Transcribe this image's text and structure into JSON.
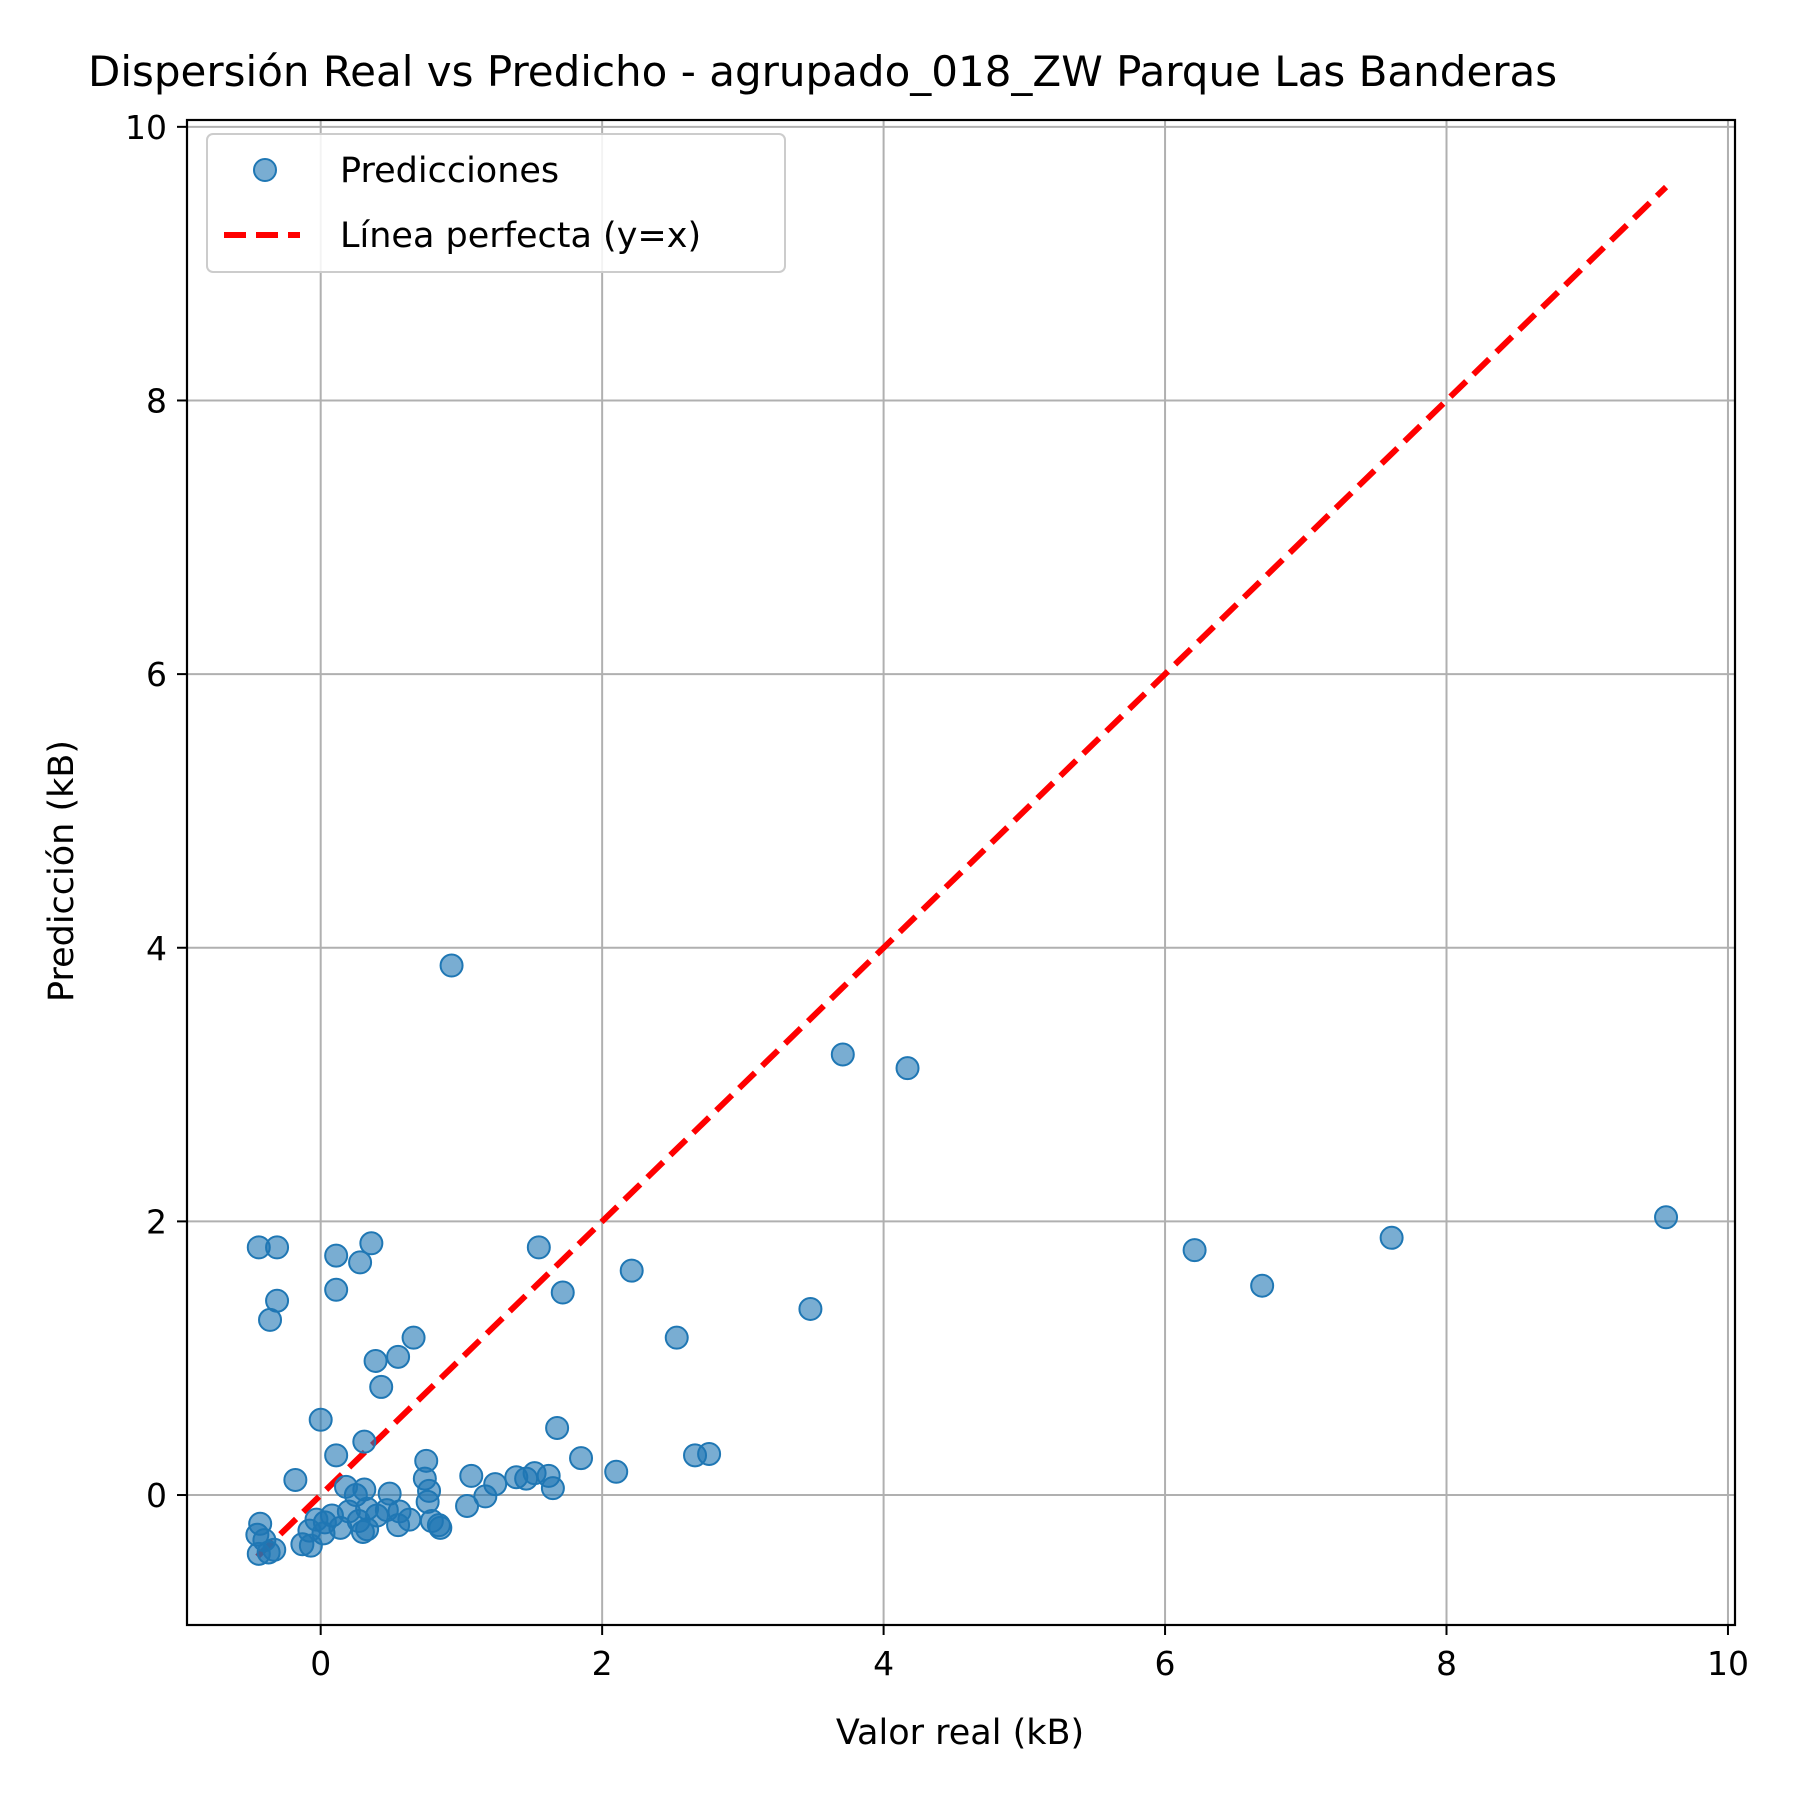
{
  "chart_data": {
    "type": "scatter",
    "title": "Dispersión Real vs Predicho - agrupado_018_ZW Parque Las Banderas",
    "xlabel": "Valor real (kB)",
    "ylabel": "Predicción (kB)",
    "xlim": [
      -0.95,
      10.05
    ],
    "ylim": [
      -0.95,
      10.05
    ],
    "x_ticks": [
      0,
      2,
      4,
      6,
      8,
      10
    ],
    "y_ticks": [
      0,
      2,
      4,
      6,
      8,
      10
    ],
    "x_tick_labels": [
      "0",
      "2",
      "4",
      "6",
      "8",
      "10"
    ],
    "y_tick_labels": [
      "0",
      "2",
      "4",
      "6",
      "8",
      "10"
    ],
    "grid": true,
    "legend_position": "top-left",
    "series": [
      {
        "name": "Predicciones",
        "type": "scatter",
        "color": "#1f77b4",
        "points": [
          [
            -0.44,
            1.81
          ],
          [
            -0.31,
            1.81
          ],
          [
            -0.31,
            1.42
          ],
          [
            -0.36,
            1.28
          ],
          [
            0.11,
            1.75
          ],
          [
            0.36,
            1.84
          ],
          [
            0.28,
            1.7
          ],
          [
            0.11,
            1.5
          ],
          [
            0.93,
            3.87
          ],
          [
            1.55,
            1.81
          ],
          [
            1.72,
            1.48
          ],
          [
            2.21,
            1.64
          ],
          [
            2.53,
            1.15
          ],
          [
            3.48,
            1.36
          ],
          [
            3.71,
            3.22
          ],
          [
            4.17,
            3.12
          ],
          [
            6.21,
            1.79
          ],
          [
            6.69,
            1.53
          ],
          [
            7.61,
            1.88
          ],
          [
            9.56,
            2.03
          ],
          [
            0.66,
            1.15
          ],
          [
            0.39,
            0.98
          ],
          [
            0.55,
            1.01
          ],
          [
            0.43,
            0.79
          ],
          [
            0.0,
            0.55
          ],
          [
            0.31,
            0.39
          ],
          [
            0.11,
            0.29
          ],
          [
            -0.18,
            0.11
          ],
          [
            1.68,
            0.49
          ],
          [
            1.85,
            0.27
          ],
          [
            2.1,
            0.17
          ],
          [
            2.66,
            0.29
          ],
          [
            2.76,
            0.3
          ],
          [
            0.75,
            0.25
          ],
          [
            0.74,
            0.12
          ],
          [
            0.77,
            0.03
          ],
          [
            1.07,
            0.14
          ],
          [
            1.24,
            0.08
          ],
          [
            1.39,
            0.13
          ],
          [
            1.46,
            0.12
          ],
          [
            1.52,
            0.16
          ],
          [
            1.62,
            0.14
          ],
          [
            1.65,
            0.05
          ],
          [
            1.17,
            -0.01
          ],
          [
            1.04,
            -0.08
          ],
          [
            0.49,
            0.01
          ],
          [
            0.31,
            0.04
          ],
          [
            0.25,
            0.0
          ],
          [
            0.18,
            0.06
          ],
          [
            0.76,
            -0.05
          ],
          [
            0.56,
            -0.12
          ],
          [
            0.63,
            -0.18
          ],
          [
            0.47,
            -0.11
          ],
          [
            0.4,
            -0.15
          ],
          [
            0.33,
            -0.1
          ],
          [
            0.27,
            -0.19
          ],
          [
            0.2,
            -0.12
          ],
          [
            0.14,
            -0.24
          ],
          [
            0.08,
            -0.15
          ],
          [
            0.03,
            -0.2
          ],
          [
            -0.03,
            -0.18
          ],
          [
            -0.08,
            -0.26
          ],
          [
            0.79,
            -0.19
          ],
          [
            0.84,
            -0.22
          ],
          [
            0.85,
            -0.24
          ],
          [
            0.55,
            -0.22
          ],
          [
            0.33,
            -0.25
          ],
          [
            0.3,
            -0.27
          ],
          [
            0.02,
            -0.28
          ],
          [
            -0.13,
            -0.36
          ],
          [
            -0.07,
            -0.37
          ],
          [
            -0.43,
            -0.21
          ],
          [
            -0.45,
            -0.29
          ],
          [
            -0.4,
            -0.33
          ],
          [
            -0.33,
            -0.4
          ],
          [
            -0.37,
            -0.42
          ],
          [
            -0.44,
            -0.43
          ]
        ]
      },
      {
        "name": "Línea perfecta (y=x)",
        "type": "line",
        "color": "#ff0000",
        "dashed": true,
        "x": [
          -0.45,
          9.56
        ],
        "y": [
          -0.45,
          9.56
        ]
      }
    ]
  }
}
